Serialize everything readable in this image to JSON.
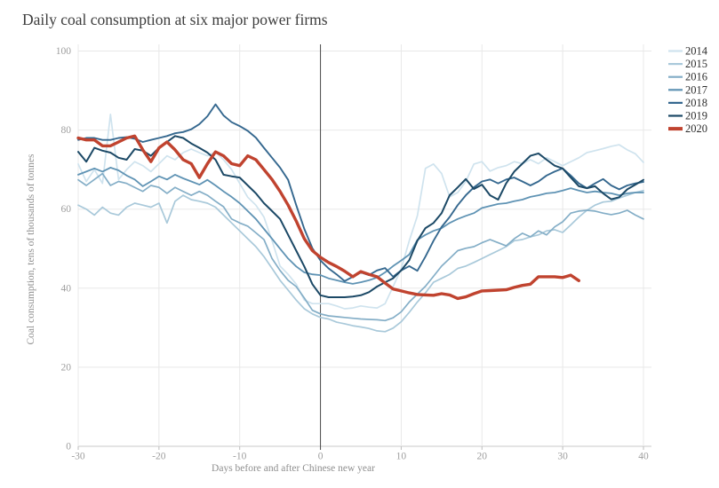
{
  "chart_data": {
    "type": "line",
    "title": "Daily coal consumption at six major power firms",
    "xlabel": "Days before and after Chinese new year",
    "ylabel": "Coal consumption, tens of thousands of tonnes",
    "xlim": [
      -30,
      40
    ],
    "ylim": [
      0,
      100
    ],
    "x_ticks": [
      -30,
      -20,
      -10,
      0,
      10,
      20,
      30,
      40
    ],
    "y_ticks": [
      0,
      20,
      40,
      60,
      80,
      100
    ],
    "grid": true,
    "legend_position": "top-right",
    "reference_line_x": 0,
    "days": [
      -30,
      -29,
      -28,
      -27,
      -26,
      -25,
      -24,
      -23,
      -22,
      -21,
      -20,
      -19,
      -18,
      -17,
      -16,
      -15,
      -14,
      -13,
      -12,
      -11,
      -10,
      -9,
      -8,
      -7,
      -6,
      -5,
      -4,
      -3,
      -2,
      -1,
      0,
      1,
      2,
      3,
      4,
      5,
      6,
      7,
      8,
      9,
      10,
      11,
      12,
      13,
      14,
      15,
      16,
      17,
      18,
      19,
      20,
      21,
      22,
      23,
      24,
      25,
      26,
      27,
      28,
      29,
      30,
      31,
      32,
      33,
      34,
      35,
      36,
      37,
      38,
      39,
      40
    ],
    "series": [
      {
        "name": "2014",
        "color": "#cfe3ee",
        "width": 1.7,
        "values": [
          71.4,
          67,
          70,
          66.5,
          84,
          67.5,
          70,
          72,
          71,
          69.5,
          71.5,
          73.5,
          72.5,
          74.3,
          75.2,
          74.3,
          73.5,
          74.5,
          72.5,
          70,
          66.5,
          63,
          61,
          58,
          52,
          45.6,
          43.5,
          41,
          37,
          36.1,
          36.1,
          36.1,
          35.5,
          34.8,
          35,
          35.5,
          35.2,
          35,
          36.1,
          40.4,
          44.9,
          52,
          58.3,
          70.3,
          71.4,
          69,
          63.1,
          64.2,
          67,
          71.4,
          72,
          69.6,
          70.5,
          71,
          72,
          71.5,
          72.5,
          71.5,
          73,
          72,
          71,
          72,
          73,
          74.3,
          74.8,
          75.3,
          75.9,
          76.3,
          75,
          74,
          71.8
        ]
      },
      {
        "name": "2015",
        "color": "#a9c9da",
        "width": 1.7,
        "values": [
          61,
          60,
          58.5,
          60.5,
          59,
          58.5,
          60.5,
          61.5,
          61,
          60.5,
          61.5,
          56.5,
          62,
          63.5,
          62.4,
          62,
          61.5,
          60.5,
          58.5,
          56.5,
          54.5,
          52.5,
          50.5,
          48,
          45,
          42,
          39.5,
          37,
          34.8,
          33.5,
          32.6,
          32.2,
          31.4,
          31,
          30.5,
          30.2,
          29.8,
          29.2,
          29,
          29.9,
          31.5,
          33.9,
          36.5,
          38.8,
          41.5,
          42.5,
          43.5,
          45,
          45.6,
          46.5,
          47.5,
          48.5,
          49.5,
          50.5,
          52,
          52.3,
          53,
          53.5,
          54.5,
          54.8,
          54.1,
          56,
          58,
          59.7,
          61,
          61.8,
          62,
          62.8,
          63.5,
          64.2,
          64.7
        ]
      },
      {
        "name": "2016",
        "color": "#84aec7",
        "width": 1.7,
        "values": [
          67.4,
          66,
          67.5,
          69,
          66,
          67,
          66.5,
          65.5,
          64.5,
          66,
          65.5,
          64,
          65.5,
          64.5,
          63.5,
          64.5,
          63.5,
          62,
          60.6,
          57.5,
          56.5,
          55.7,
          54,
          52.3,
          47.5,
          44.5,
          42,
          40.4,
          37.5,
          34.4,
          33.5,
          33,
          32.8,
          32.6,
          32.4,
          32.2,
          32.1,
          32,
          31.8,
          32.5,
          34,
          36.5,
          38.5,
          40.5,
          43,
          45.6,
          47.5,
          49.5,
          50.1,
          50.5,
          51.5,
          52.3,
          51.5,
          50.7,
          52.5,
          53.9,
          53,
          54.5,
          53.5,
          55.5,
          56.8,
          59,
          59.5,
          59.7,
          59.5,
          59,
          58.6,
          59,
          59.7,
          58.5,
          57.5
        ]
      },
      {
        "name": "2017",
        "color": "#5f93b4",
        "width": 1.8,
        "values": [
          68.7,
          69.5,
          70.3,
          69.5,
          70.5,
          69.8,
          68.5,
          67.5,
          65.8,
          67,
          68.3,
          67.5,
          68.7,
          67.8,
          67,
          66.2,
          67.4,
          66,
          64.5,
          63.1,
          61.5,
          59.5,
          57.5,
          55,
          52.5,
          50,
          47.5,
          45.5,
          44,
          43.5,
          43.3,
          42.5,
          42,
          41.5,
          41.1,
          41.5,
          42,
          42.7,
          44,
          45.6,
          47,
          48.5,
          52.2,
          53.5,
          54.5,
          55.2,
          56.5,
          57.5,
          58.3,
          59,
          60.3,
          60.8,
          61.3,
          61.5,
          62,
          62.4,
          63.1,
          63.5,
          64,
          64.2,
          64.7,
          65.3,
          64.7,
          64.2,
          64.5,
          64.2,
          64,
          63.5,
          64,
          64.2,
          64.2
        ]
      },
      {
        "name": "2018",
        "color": "#35688f",
        "width": 1.9,
        "values": [
          77.5,
          78,
          78,
          77.5,
          77.5,
          78,
          78.2,
          77.8,
          77,
          77.5,
          78,
          78.5,
          79.2,
          79.5,
          80.2,
          81.5,
          83.5,
          86.5,
          83.7,
          82,
          81,
          79.8,
          78.1,
          75.5,
          73,
          70.5,
          67.4,
          61,
          55,
          50.1,
          47,
          45,
          43.5,
          41.8,
          42.9,
          44,
          43.3,
          44.5,
          45.1,
          42.9,
          44.5,
          45.6,
          44.4,
          48,
          52,
          55.5,
          58,
          61,
          63.5,
          65.5,
          67,
          67.5,
          66.5,
          67.5,
          68,
          67,
          66,
          67,
          68.5,
          69.5,
          70.3,
          68.5,
          66.5,
          65.3,
          66.5,
          67.6,
          66,
          65,
          66,
          66.5,
          66.9
        ]
      },
      {
        "name": "2019",
        "color": "#1c4966",
        "width": 2,
        "values": [
          74.5,
          72,
          75.5,
          74.8,
          74.3,
          73,
          72.5,
          75.2,
          74.8,
          73.5,
          75.5,
          77,
          78.5,
          78,
          76.6,
          75.5,
          74.3,
          72.5,
          68.7,
          68.3,
          68,
          66,
          64,
          61.5,
          59.5,
          57.5,
          53.5,
          49.5,
          45.5,
          41,
          38.2,
          37.7,
          37.7,
          37.7,
          37.9,
          38.2,
          39,
          40.4,
          41.5,
          42.5,
          44.5,
          47.1,
          52,
          55.2,
          56.5,
          59,
          63.5,
          65.5,
          67.6,
          65.1,
          66.2,
          63.5,
          62.4,
          66.5,
          69.5,
          71.5,
          73.5,
          74.1,
          72.5,
          71,
          70.3,
          68,
          65.8,
          65.3,
          65.8,
          64,
          62.5,
          63,
          65,
          66.2,
          67.4
        ]
      },
      {
        "name": "2020",
        "color": "#c0432f",
        "width": 3.4,
        "values": [
          78,
          77.5,
          77.5,
          76,
          76,
          77,
          78,
          78.5,
          75,
          72,
          75.5,
          77,
          75,
          72.5,
          71.5,
          68,
          71.5,
          74.5,
          73.5,
          71.5,
          71,
          73.5,
          72.5,
          70,
          67.5,
          64.5,
          61,
          57,
          52.5,
          49.5,
          47.8,
          46.5,
          45.5,
          44.3,
          42.9,
          44.2,
          43.5,
          42.9,
          41.3,
          39.8,
          39.3,
          38.8,
          38.4,
          38.3,
          38.2,
          38.6,
          38.3,
          37.4,
          37.8,
          38.6,
          39.3,
          39.4,
          39.5,
          39.6,
          40.2,
          40.7,
          41,
          42.9,
          42.9,
          42.9,
          42.7,
          43.3,
          41.9,
          null,
          null,
          null,
          null,
          null,
          null,
          null,
          null
        ]
      }
    ]
  }
}
